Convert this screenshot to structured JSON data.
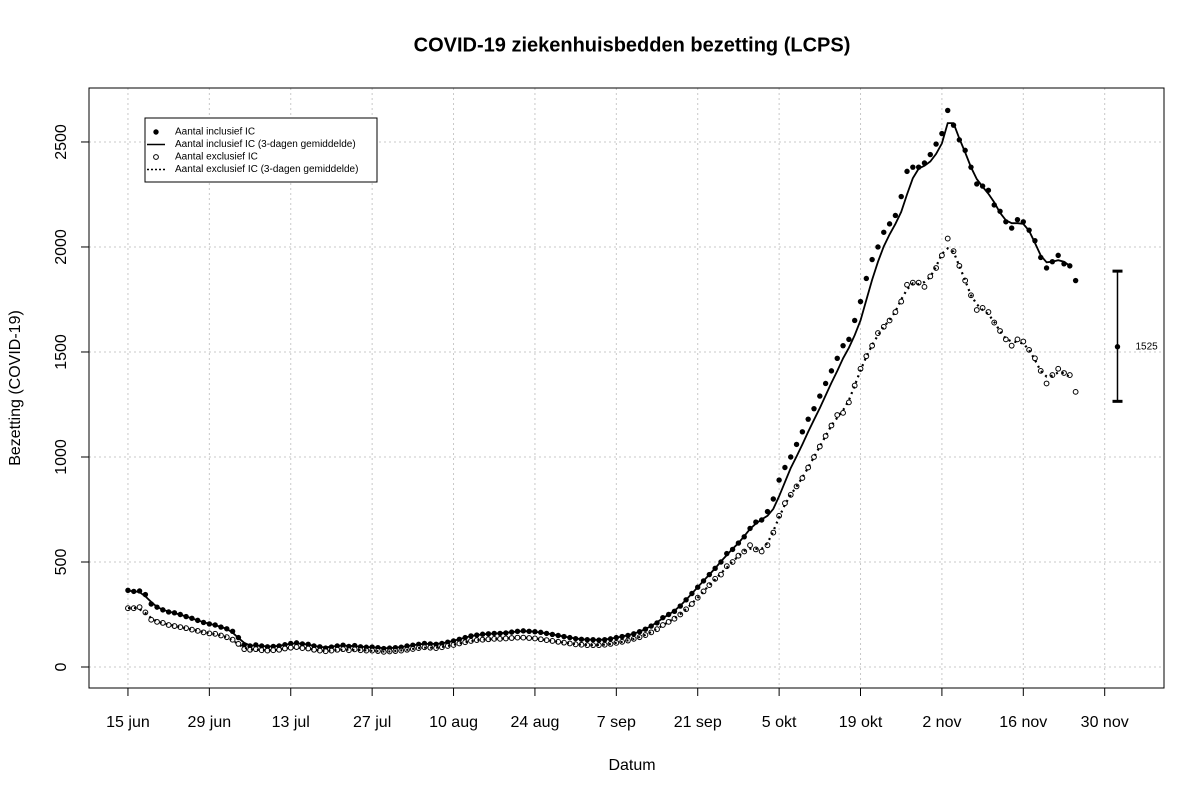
{
  "chart_data": {
    "type": "scatter-line",
    "title": "COVID-19 ziekenhuisbedden bezetting (LCPS)",
    "x_label": "Datum",
    "y_label": "Bezetting (COVID-19)",
    "xlim": [
      -6.7,
      178.2
    ],
    "ylim": [
      -100,
      2757
    ],
    "xticks": [
      {
        "value": 0,
        "label": "15 jun"
      },
      {
        "value": 14,
        "label": "29 jun"
      },
      {
        "value": 28,
        "label": "13 jul"
      },
      {
        "value": 42,
        "label": "27 jul"
      },
      {
        "value": 56,
        "label": "10 aug"
      },
      {
        "value": 70,
        "label": "24 aug"
      },
      {
        "value": 84,
        "label": "7 sep"
      },
      {
        "value": 98,
        "label": "21 sep"
      },
      {
        "value": 112,
        "label": "5 okt"
      },
      {
        "value": 126,
        "label": "19 okt"
      },
      {
        "value": 140,
        "label": "2 nov"
      },
      {
        "value": 154,
        "label": "16 nov"
      },
      {
        "value": 168,
        "label": "30 nov"
      }
    ],
    "yticks": [
      0,
      500,
      1000,
      1500,
      2000,
      2500
    ],
    "grid": true,
    "legend": "topleft",
    "x": [
      0,
      1,
      2,
      3,
      4,
      5,
      6,
      7,
      8,
      9,
      10,
      11,
      12,
      13,
      14,
      15,
      16,
      17,
      18,
      19,
      20,
      21,
      22,
      23,
      24,
      25,
      26,
      27,
      28,
      29,
      30,
      31,
      32,
      33,
      34,
      35,
      36,
      37,
      38,
      39,
      40,
      41,
      42,
      43,
      44,
      45,
      46,
      47,
      48,
      49,
      50,
      51,
      52,
      53,
      54,
      55,
      56,
      57,
      58,
      59,
      60,
      61,
      62,
      63,
      64,
      65,
      66,
      67,
      68,
      69,
      70,
      71,
      72,
      73,
      74,
      75,
      76,
      77,
      78,
      79,
      80,
      81,
      82,
      83,
      84,
      85,
      86,
      87,
      88,
      89,
      90,
      91,
      92,
      93,
      94,
      95,
      96,
      97,
      98,
      99,
      100,
      101,
      102,
      103,
      104,
      105,
      106,
      107,
      108,
      109,
      110,
      111,
      112,
      113,
      114,
      115,
      116,
      117,
      118,
      119,
      120,
      121,
      122,
      123,
      124,
      125,
      126,
      127,
      128,
      129,
      130,
      131,
      132,
      133,
      134,
      135,
      136,
      137,
      138,
      139,
      140,
      141,
      142,
      143,
      144,
      145,
      146,
      147,
      148,
      149,
      150,
      151,
      152,
      153,
      154,
      155,
      156,
      157,
      158,
      159,
      160,
      161,
      162,
      163
    ],
    "series": [
      {
        "name": "Aantal inclusief IC",
        "style": "filled",
        "color": "#000000",
        "values": [
          365,
          360,
          362,
          345,
          300,
          285,
          272,
          262,
          258,
          250,
          240,
          232,
          222,
          212,
          205,
          200,
          190,
          182,
          170,
          140,
          105,
          100,
          105,
          100,
          96,
          98,
          100,
          106,
          112,
          115,
          110,
          108,
          100,
          96,
          90,
          95,
          100,
          104,
          98,
          102,
          96,
          94,
          95,
          92,
          88,
          90,
          92,
          94,
          100,
          104,
          108,
          112,
          110,
          108,
          112,
          118,
          124,
          132,
          140,
          148,
          152,
          156,
          158,
          160,
          160,
          162,
          166,
          170,
          172,
          170,
          168,
          165,
          160,
          155,
          150,
          145,
          140,
          135,
          132,
          130,
          130,
          128,
          130,
          134,
          140,
          145,
          150,
          158,
          168,
          180,
          195,
          210,
          235,
          250,
          265,
          290,
          320,
          350,
          380,
          410,
          440,
          470,
          500,
          540,
          560,
          590,
          620,
          660,
          690,
          700,
          740,
          800,
          890,
          950,
          1000,
          1060,
          1120,
          1180,
          1230,
          1290,
          1350,
          1410,
          1470,
          1530,
          1560,
          1650,
          1740,
          1850,
          1940,
          2000,
          2070,
          2110,
          2150,
          2240,
          2360,
          2380,
          2380,
          2400,
          2440,
          2490,
          2540,
          2650,
          2580,
          2510,
          2460,
          2380,
          2300,
          2290,
          2270,
          2200,
          2170,
          2120,
          2090,
          2130,
          2120,
          2080,
          2030,
          1950,
          1900,
          1930,
          1960,
          1920,
          1910,
          1840
        ]
      },
      {
        "name": "Aantal inclusief IC (3-dagen gemiddelde)",
        "style": "solid",
        "color": "#000000",
        "values": [
          362,
          362,
          356,
          336,
          310,
          286,
          273,
          264,
          257,
          249,
          241,
          231,
          223,
          213,
          206,
          199,
          191,
          181,
          164,
          138,
          115,
          103,
          102,
          100,
          98,
          98,
          101,
          106,
          111,
          112,
          111,
          106,
          101,
          95,
          94,
          96,
          101,
          101,
          101,
          99,
          97,
          95,
          94,
          92,
          90,
          90,
          92,
          95,
          99,
          104,
          108,
          110,
          110,
          110,
          113,
          118,
          125,
          132,
          140,
          147,
          152,
          155,
          158,
          159,
          161,
          163,
          166,
          169,
          171,
          170,
          168,
          164,
          160,
          155,
          150,
          145,
          140,
          136,
          132,
          131,
          129,
          129,
          131,
          135,
          140,
          145,
          151,
          159,
          168,
          181,
          195,
          213,
          232,
          250,
          268,
          292,
          320,
          350,
          380,
          410,
          440,
          470,
          503,
          533,
          563,
          590,
          623,
          657,
          683,
          703,
          720,
          753,
          813,
          880,
          947,
          1003,
          1060,
          1120,
          1177,
          1233,
          1293,
          1353,
          1410,
          1470,
          1520,
          1580,
          1650,
          1747,
          1843,
          1930,
          2003,
          2060,
          2110,
          2167,
          2250,
          2327,
          2373,
          2387,
          2407,
          2443,
          2493,
          2590,
          2590,
          2517,
          2450,
          2380,
          2323,
          2287,
          2253,
          2213,
          2163,
          2127,
          2113,
          2113,
          2110,
          2077,
          2020,
          1960,
          1927,
          1930,
          1937,
          1930,
          1910,
          null
        ]
      },
      {
        "name": "Aantal exclusief IC",
        "style": "open",
        "color": "#000000",
        "values": [
          280,
          280,
          285,
          260,
          225,
          215,
          210,
          200,
          195,
          190,
          185,
          178,
          172,
          165,
          160,
          158,
          150,
          142,
          130,
          110,
          85,
          82,
          85,
          80,
          78,
          80,
          82,
          88,
          92,
          95,
          90,
          88,
          82,
          78,
          75,
          78,
          82,
          85,
          80,
          84,
          80,
          78,
          78,
          76,
          72,
          74,
          76,
          78,
          82,
          86,
          90,
          94,
          92,
          90,
          94,
          100,
          105,
          112,
          118,
          124,
          128,
          130,
          132,
          134,
          134,
          136,
          138,
          140,
          140,
          138,
          136,
          132,
          128,
          124,
          120,
          116,
          112,
          108,
          106,
          104,
          104,
          104,
          106,
          110,
          115,
          120,
          126,
          134,
          142,
          152,
          165,
          180,
          200,
          215,
          230,
          250,
          275,
          300,
          330,
          360,
          390,
          420,
          440,
          480,
          500,
          530,
          550,
          580,
          560,
          550,
          580,
          640,
          720,
          780,
          820,
          860,
          900,
          950,
          1000,
          1050,
          1100,
          1150,
          1200,
          1210,
          1260,
          1340,
          1420,
          1480,
          1530,
          1590,
          1620,
          1650,
          1690,
          1740,
          1820,
          1830,
          1830,
          1810,
          1860,
          1900,
          1960,
          2040,
          1980,
          1910,
          1840,
          1770,
          1700,
          1710,
          1690,
          1640,
          1600,
          1560,
          1530,
          1560,
          1550,
          1510,
          1470,
          1410,
          1350,
          1390,
          1420,
          1400,
          1390,
          1310
        ]
      },
      {
        "name": "Aantal exclusief IC (3-dagen gemiddelde)",
        "style": "dotted",
        "color": "#000000",
        "values": [
          280,
          282,
          275,
          257,
          233,
          217,
          208,
          202,
          195,
          190,
          184,
          178,
          172,
          166,
          161,
          156,
          150,
          141,
          127,
          108,
          92,
          84,
          82,
          81,
          79,
          80,
          83,
          87,
          92,
          92,
          91,
          87,
          83,
          78,
          77,
          78,
          82,
          82,
          83,
          81,
          81,
          79,
          77,
          75,
          74,
          74,
          76,
          79,
          82,
          86,
          90,
          92,
          92,
          92,
          95,
          100,
          106,
          112,
          118,
          123,
          127,
          130,
          132,
          133,
          135,
          136,
          138,
          139,
          139,
          138,
          135,
          132,
          128,
          124,
          120,
          116,
          112,
          109,
          106,
          105,
          104,
          105,
          107,
          110,
          115,
          120,
          127,
          134,
          143,
          153,
          166,
          182,
          198,
          215,
          232,
          252,
          275,
          302,
          330,
          360,
          390,
          417,
          447,
          473,
          503,
          527,
          553,
          563,
          563,
          563,
          590,
          647,
          713,
          773,
          820,
          860,
          903,
          950,
          1000,
          1050,
          1100,
          1150,
          1187,
          1223,
          1270,
          1340,
          1413,
          1477,
          1533,
          1580,
          1620,
          1653,
          1693,
          1750,
          1797,
          1827,
          1823,
          1833,
          1857,
          1907,
          1967,
          1993,
          1977,
          1910,
          1840,
          1770,
          1727,
          1700,
          1680,
          1643,
          1600,
          1563,
          1550,
          1547,
          1540,
          1510,
          1463,
          1410,
          1383,
          1387,
          1403,
          1400,
          1380,
          null
        ]
      }
    ],
    "interval": {
      "x": 170.2,
      "value": 1525,
      "low": 1265,
      "high": 1885
    }
  }
}
